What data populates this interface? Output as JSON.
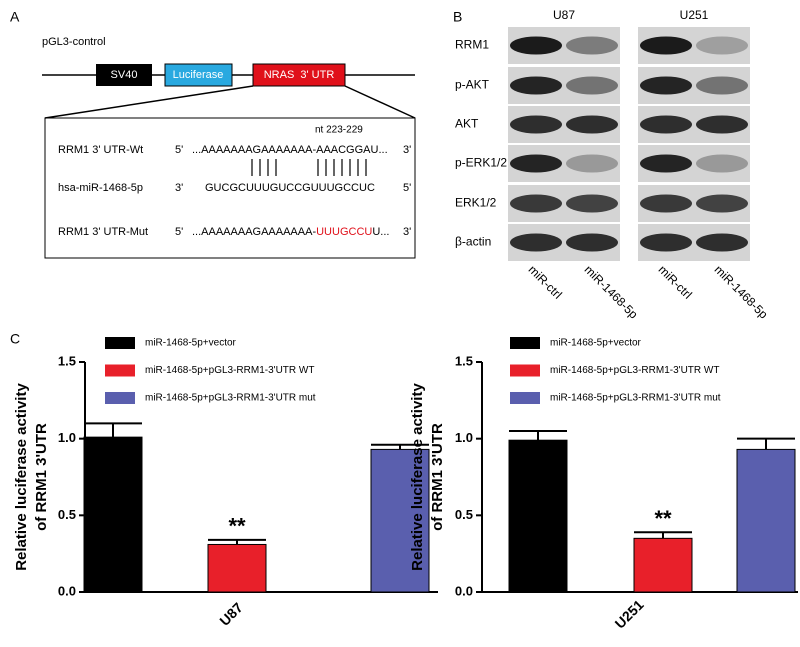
{
  "panel_labels": [
    "A",
    "B",
    "C"
  ],
  "construct": {
    "title": "pGL3-control",
    "elements": [
      "SV40",
      "Luciferase",
      "NRAS  3' UTR"
    ]
  },
  "alignment": {
    "annotation": "nt 223-229",
    "rows": [
      {
        "name": "RRM1 3' UTR-Wt",
        "left": "5'",
        "sequence": [
          "...AAAAAAAGAAAAAAA-AAACGGAU..."
        ],
        "right": "3'"
      },
      {
        "name": "hsa-miR-1468-5p",
        "left": "3'",
        "sequence": [
          "GUCGCUUUGUCCGUUUGCCUC"
        ],
        "right": "5'"
      },
      {
        "name": "RRM1 3' UTR-Mut",
        "left": "5'",
        "sequence": [
          "...AAAAAAAGAAAAAAA-",
          "UUUGCCU",
          "U..."
        ],
        "right": "3'"
      }
    ]
  },
  "blot": {
    "cell_lines": [
      "U87",
      "U251"
    ],
    "proteins": [
      "RRM1",
      "p-AKT",
      "AKT",
      "p-ERK1/2",
      "ERK1/2",
      "β-actin"
    ],
    "lanes": [
      "miR-ctrl",
      "miR-1468-5p"
    ]
  },
  "chart_data": [
    {
      "type": "bar",
      "categories": [
        "U87"
      ],
      "ylabel": [
        "Relative luciferase activity",
        "of RRM1 3'UTR"
      ],
      "ylim": [
        0,
        1.5
      ],
      "yticks": [
        {
          "value": 0,
          "label": "0.0"
        },
        {
          "value": 0.5,
          "label": "0.5"
        },
        {
          "value": 1,
          "label": "1.0"
        },
        {
          "value": 1.5,
          "label": "1.5"
        }
      ],
      "legend": "top-left",
      "series": [
        {
          "name": "miR-1468-5p+vector",
          "color": "#000000",
          "values": [
            1.01
          ],
          "errors": [
            0.09
          ]
        },
        {
          "name": "miR-1468-5p+pGL3-RRM1-3'UTR WT",
          "color": "#e8202a",
          "values": [
            0.31
          ],
          "errors": [
            0.03
          ],
          "significance": [
            "**"
          ]
        },
        {
          "name": "miR-1468-5p+pGL3-RRM1-3'UTR mut",
          "color": "#5a5fae",
          "values": [
            0.93
          ],
          "errors": [
            0.03
          ]
        }
      ]
    },
    {
      "type": "bar",
      "categories": [
        "U251"
      ],
      "ylabel": [
        "Relative luciferase activity",
        "of RRM1 3'UTR"
      ],
      "ylim": [
        0,
        1.5
      ],
      "yticks": [
        {
          "value": 0,
          "label": "0.0"
        },
        {
          "value": 0.5,
          "label": "0.5"
        },
        {
          "value": 1,
          "label": "1.0"
        },
        {
          "value": 1.5,
          "label": "1.5"
        }
      ],
      "legend": "top-left",
      "series": [
        {
          "name": "miR-1468-5p+vector",
          "color": "#000000",
          "values": [
            0.99
          ],
          "errors": [
            0.06
          ]
        },
        {
          "name": "miR-1468-5p+pGL3-RRM1-3'UTR WT",
          "color": "#e8202a",
          "values": [
            0.35
          ],
          "errors": [
            0.04
          ],
          "significance": [
            "**"
          ]
        },
        {
          "name": "miR-1468-5p+pGL3-RRM1-3'UTR mut",
          "color": "#5a5fae",
          "values": [
            0.93
          ],
          "errors": [
            0.07
          ]
        }
      ]
    }
  ]
}
